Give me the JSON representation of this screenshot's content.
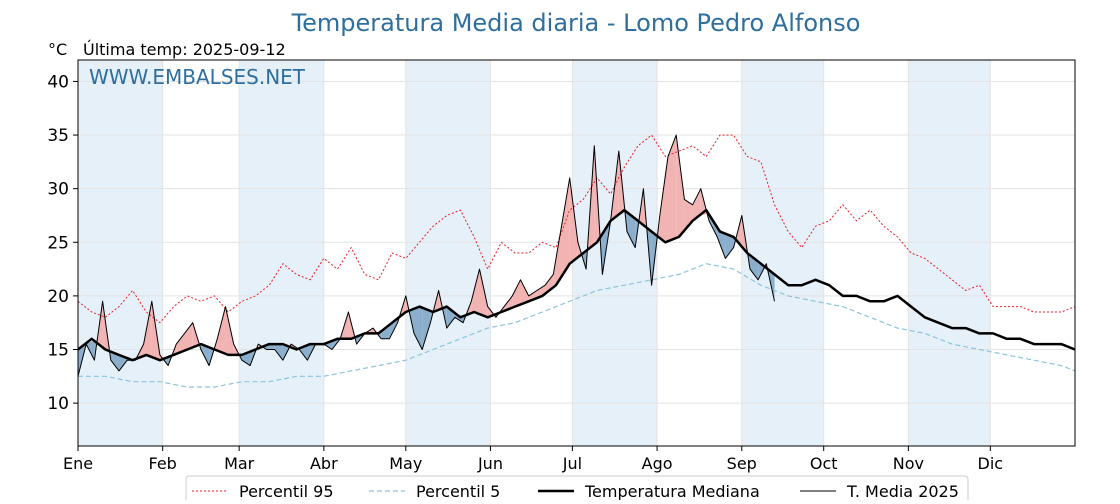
{
  "title": "Temperatura Media diaria - Lomo Pedro Alfonso",
  "unit_label": "°C",
  "last_temp_label": "Última temp: 2025-09-12",
  "watermark": "WWW.EMBALSES.NET",
  "colors": {
    "title": "#2e6f9e",
    "p95": "#e8202a",
    "p5": "#8cc4dc",
    "median": "#000000",
    "t2025": "#000000",
    "fill_above": "#f2b3b3",
    "fill_below": "#8aaecb",
    "band": "#e6f0f8"
  },
  "chart_data": {
    "type": "line",
    "xlabel": "",
    "ylabel": "°C",
    "ylim": [
      6,
      42
    ],
    "xlim_days": [
      0,
      365
    ],
    "yticks": [
      10,
      15,
      20,
      25,
      30,
      35,
      40
    ],
    "month_ticks": [
      "Ene",
      "Feb",
      "Mar",
      "Abr",
      "May",
      "Jun",
      "Jul",
      "Ago",
      "Sep",
      "Oct",
      "Nov",
      "Dic"
    ],
    "month_start_days": [
      0,
      31,
      59,
      90,
      120,
      151,
      181,
      212,
      243,
      273,
      304,
      334
    ],
    "grid": true,
    "legend_position": "bottom-center",
    "series": [
      {
        "name": "Percentil 95",
        "style": "dotted-red",
        "x_days": [
          0,
          5,
          10,
          15,
          20,
          25,
          30,
          35,
          40,
          45,
          50,
          55,
          60,
          65,
          70,
          75,
          80,
          85,
          90,
          95,
          100,
          105,
          110,
          115,
          120,
          125,
          130,
          135,
          140,
          145,
          150,
          155,
          160,
          165,
          170,
          175,
          180,
          185,
          190,
          195,
          200,
          205,
          210,
          215,
          220,
          225,
          230,
          235,
          240,
          245,
          250,
          255,
          260,
          265,
          270,
          275,
          280,
          285,
          290,
          295,
          300,
          305,
          310,
          315,
          320,
          325,
          330,
          335,
          340,
          345,
          350,
          355,
          360,
          365
        ],
        "values": [
          19.5,
          18.5,
          18.0,
          19.0,
          20.5,
          18.5,
          17.5,
          19.0,
          20.0,
          19.5,
          20.0,
          18.5,
          19.5,
          20.0,
          21.0,
          23.0,
          22.0,
          21.5,
          23.5,
          22.5,
          24.5,
          22.0,
          21.5,
          24.0,
          23.5,
          25.0,
          26.5,
          27.5,
          28.0,
          25.5,
          22.5,
          25.0,
          24.0,
          24.0,
          25.0,
          24.5,
          28.0,
          29.0,
          31.0,
          29.5,
          32.0,
          34.0,
          35.0,
          33.0,
          33.5,
          34.0,
          33.0,
          35.0,
          35.0,
          33.0,
          32.5,
          28.5,
          26.0,
          24.5,
          26.5,
          27.0,
          28.5,
          27.0,
          28.0,
          26.5,
          25.5,
          24.0,
          23.5,
          22.5,
          21.5,
          20.5,
          21.0,
          19.0,
          19.0,
          19.0,
          18.5,
          18.5,
          18.5,
          19.0
        ]
      },
      {
        "name": "Percentil 5",
        "style": "dashed-lightblue",
        "x_days": [
          0,
          10,
          20,
          30,
          40,
          50,
          60,
          70,
          80,
          90,
          100,
          110,
          120,
          130,
          140,
          150,
          160,
          170,
          180,
          190,
          200,
          210,
          220,
          230,
          240,
          250,
          260,
          270,
          280,
          290,
          300,
          310,
          320,
          330,
          340,
          350,
          360,
          365
        ],
        "values": [
          12.5,
          12.5,
          12.0,
          12.0,
          11.5,
          11.5,
          12.0,
          12.0,
          12.5,
          12.5,
          13.0,
          13.5,
          14.0,
          15.0,
          16.0,
          17.0,
          17.5,
          18.5,
          19.5,
          20.5,
          21.0,
          21.5,
          22.0,
          23.0,
          22.5,
          21.0,
          20.0,
          19.5,
          19.0,
          18.0,
          17.0,
          16.5,
          15.5,
          15.0,
          14.5,
          14.0,
          13.5,
          13.0
        ]
      },
      {
        "name": "Temperatura Mediana",
        "style": "thick-black",
        "x_days": [
          0,
          5,
          10,
          15,
          20,
          25,
          30,
          35,
          40,
          45,
          50,
          55,
          60,
          65,
          70,
          75,
          80,
          85,
          90,
          95,
          100,
          105,
          110,
          115,
          120,
          125,
          130,
          135,
          140,
          145,
          150,
          155,
          160,
          165,
          170,
          175,
          180,
          185,
          190,
          195,
          200,
          205,
          210,
          215,
          220,
          225,
          230,
          235,
          240,
          245,
          250,
          255,
          260,
          265,
          270,
          275,
          280,
          285,
          290,
          295,
          300,
          305,
          310,
          315,
          320,
          325,
          330,
          335,
          340,
          345,
          350,
          355,
          360,
          365
        ],
        "values": [
          15.0,
          16.0,
          15.0,
          14.5,
          14.0,
          14.5,
          14.0,
          14.5,
          15.0,
          15.5,
          15.0,
          14.5,
          14.5,
          15.0,
          15.5,
          15.5,
          15.0,
          15.5,
          15.5,
          16.0,
          16.0,
          16.5,
          16.5,
          17.5,
          18.5,
          19.0,
          18.5,
          19.0,
          18.0,
          18.5,
          18.0,
          18.5,
          19.0,
          19.5,
          20.0,
          21.0,
          23.0,
          24.0,
          25.0,
          27.0,
          28.0,
          27.0,
          26.0,
          25.0,
          25.5,
          27.0,
          28.0,
          26.0,
          25.5,
          24.0,
          23.0,
          22.0,
          21.0,
          21.0,
          21.5,
          21.0,
          20.0,
          20.0,
          19.5,
          19.5,
          20.0,
          19.0,
          18.0,
          17.5,
          17.0,
          17.0,
          16.5,
          16.5,
          16.0,
          16.0,
          15.5,
          15.5,
          15.5,
          15.0
        ]
      },
      {
        "name": "T. Media 2025",
        "style": "thin-black",
        "x_days": [
          0,
          3,
          6,
          9,
          12,
          15,
          18,
          21,
          24,
          27,
          30,
          33,
          36,
          39,
          42,
          45,
          48,
          51,
          54,
          57,
          60,
          63,
          66,
          69,
          72,
          75,
          78,
          81,
          84,
          87,
          90,
          93,
          96,
          99,
          102,
          105,
          108,
          111,
          114,
          117,
          120,
          123,
          126,
          129,
          132,
          135,
          138,
          141,
          144,
          147,
          150,
          153,
          156,
          159,
          162,
          165,
          168,
          171,
          174,
          177,
          180,
          183,
          186,
          189,
          192,
          195,
          198,
          201,
          204,
          207,
          210,
          213,
          216,
          219,
          222,
          225,
          228,
          231,
          234,
          237,
          240,
          243,
          246,
          249,
          252,
          255
        ],
        "values": [
          12.5,
          15.5,
          14.0,
          19.5,
          14.0,
          13.0,
          14.0,
          14.0,
          15.5,
          19.5,
          14.5,
          13.5,
          15.5,
          16.5,
          17.5,
          15.0,
          13.5,
          16.0,
          19.0,
          15.5,
          14.0,
          13.5,
          15.5,
          15.0,
          15.0,
          14.0,
          15.5,
          15.0,
          14.0,
          15.5,
          15.5,
          15.0,
          16.0,
          18.5,
          15.5,
          16.5,
          17.0,
          16.0,
          16.0,
          17.5,
          20.0,
          16.5,
          15.0,
          17.5,
          20.5,
          17.0,
          18.0,
          17.5,
          19.5,
          22.5,
          19.0,
          18.0,
          19.0,
          20.0,
          21.5,
          20.0,
          20.5,
          21.0,
          22.0,
          26.5,
          31.0,
          25.0,
          22.5,
          34.0,
          22.0,
          27.0,
          33.5,
          26.0,
          24.5,
          30.0,
          21.0,
          27.5,
          33.0,
          35.0,
          29.0,
          28.5,
          30.0,
          27.0,
          25.5,
          23.5,
          24.5,
          27.5,
          22.5,
          21.5,
          23.0,
          19.5
        ]
      }
    ]
  },
  "legend": [
    {
      "label": "Percentil 95",
      "key": "p95"
    },
    {
      "label": "Percentil 5",
      "key": "p5"
    },
    {
      "label": "Temperatura Mediana",
      "key": "median"
    },
    {
      "label": "T. Media 2025",
      "key": "t2025"
    }
  ]
}
